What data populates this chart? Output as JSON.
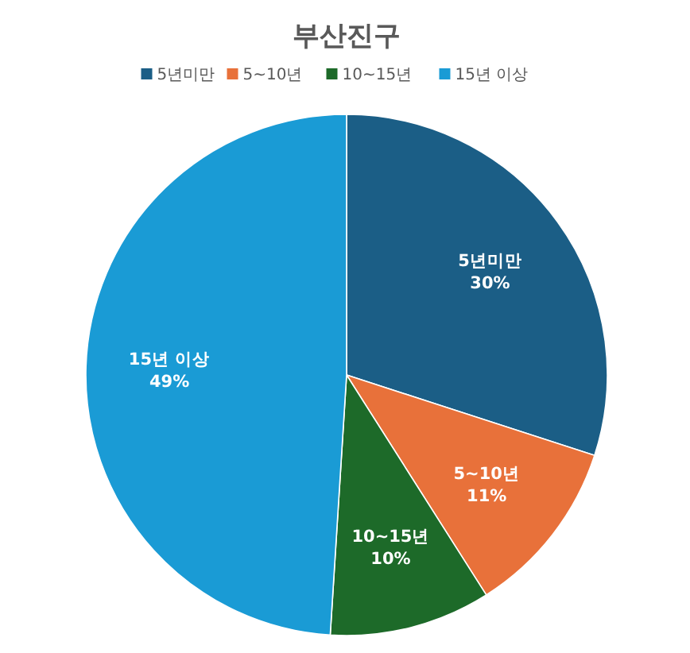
{
  "chart_data": {
    "type": "pie",
    "title": "부산진구",
    "categories": [
      "5년미만",
      "5~10년",
      "10~15년",
      "15년 이상"
    ],
    "values": [
      30,
      11,
      10,
      49
    ],
    "colors": [
      "#1b5e86",
      "#e8713a",
      "#1d6a29",
      "#1a9bd5"
    ],
    "value_labels": [
      "30%",
      "11%",
      "10%",
      "49%"
    ],
    "legend": "top"
  }
}
